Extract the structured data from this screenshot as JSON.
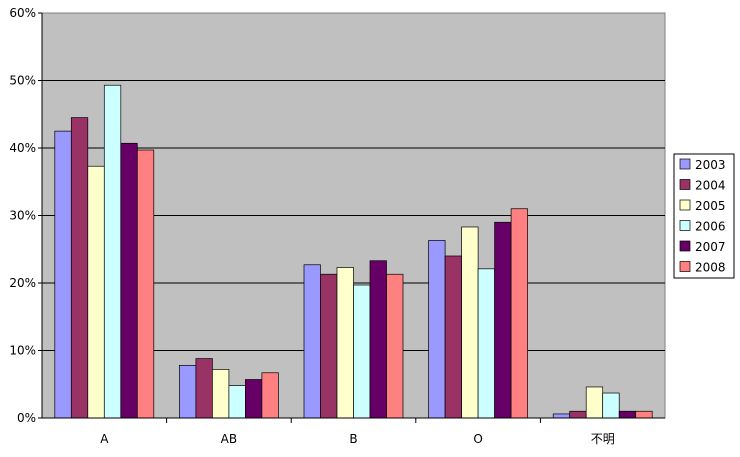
{
  "chart_data": {
    "type": "bar",
    "title": "",
    "xlabel": "",
    "ylabel": "",
    "categories": [
      "A",
      "AB",
      "B",
      "O",
      "不明"
    ],
    "ylim": [
      0,
      60
    ],
    "yticks": [
      0,
      10,
      20,
      30,
      40,
      50,
      60
    ],
    "ytick_labels": [
      "0%",
      "10%",
      "20%",
      "30%",
      "40%",
      "50%",
      "60%"
    ],
    "grid": true,
    "legend_position": "right",
    "plot_background": "#c0c0c0",
    "series": [
      {
        "name": "2003",
        "color": "#9999ff",
        "values": [
          42.5,
          7.8,
          22.7,
          26.3,
          0.6
        ]
      },
      {
        "name": "2004",
        "color": "#993366",
        "values": [
          44.5,
          8.8,
          21.3,
          24.0,
          1.0
        ]
      },
      {
        "name": "2005",
        "color": "#ffffcc",
        "values": [
          37.3,
          7.2,
          22.3,
          28.3,
          4.6
        ]
      },
      {
        "name": "2006",
        "color": "#ccffff",
        "values": [
          49.3,
          4.8,
          19.7,
          22.1,
          3.7
        ]
      },
      {
        "name": "2007",
        "color": "#660066",
        "values": [
          40.7,
          5.7,
          23.3,
          29.0,
          1.0
        ]
      },
      {
        "name": "2008",
        "color": "#ff8080",
        "values": [
          39.7,
          6.7,
          21.3,
          31.0,
          1.0
        ]
      }
    ]
  }
}
